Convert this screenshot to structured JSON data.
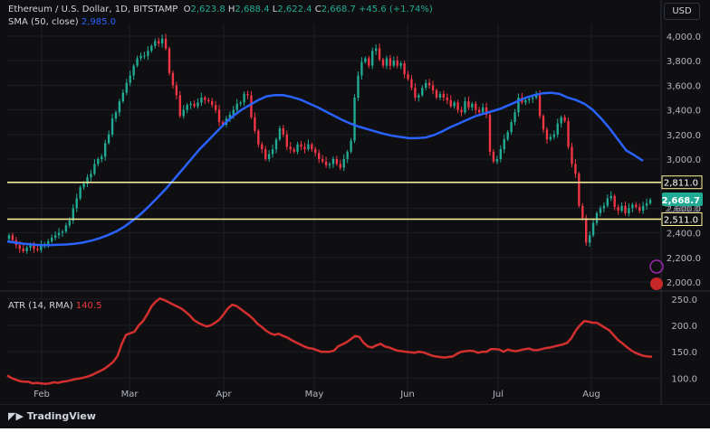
{
  "legend": {
    "symbol": "Ethereum / U.S. Dollar, 1D, BITSTAMP",
    "o_label": "O",
    "o": "2,623.8",
    "h_label": "H",
    "h": "2,688.4",
    "l_label": "L",
    "l": "2,622.4",
    "c_label": "C",
    "c": "2,668.7",
    "change": "+45.6 (+1.74%)",
    "sma_label": "SMA (50, close)",
    "sma": "2,985.0",
    "atr_label": "ATR (14, RMA)",
    "atr": "140.5"
  },
  "currency": "USD",
  "brand": "TradingView",
  "colors": {
    "up": "#22ab94",
    "down": "#f23645",
    "sma": "#2962ff",
    "atr": "#d32f2f",
    "level": "#fff59d"
  },
  "chart_data": {
    "type": "candlestick",
    "price_axis": {
      "min": 2000,
      "max": 4000,
      "ticks": [
        "2,000.0",
        "2,200.0",
        "2,400.0",
        "2,600.0",
        "2,800.0",
        "3,000.0",
        "3,200.0",
        "3,400.0",
        "3,600.0",
        "3,800.0",
        "4,000.0"
      ]
    },
    "levels": [
      {
        "value": 2811,
        "label": "2,811.0"
      },
      {
        "value": 2511,
        "label": "2,511.0"
      }
    ],
    "last_price": {
      "value": 2668.7,
      "label": "2,668.7"
    },
    "ghost_labels": [
      {
        "value": 2600,
        "label": "2,600.0"
      }
    ],
    "months": [
      "Feb",
      "Mar",
      "Apr",
      "May",
      "Jun",
      "Jul",
      "Aug"
    ],
    "price_close": [
      2380,
      2340,
      2300,
      2270,
      2250,
      2280,
      2300,
      2270,
      2260,
      2300,
      2310,
      2330,
      2360,
      2380,
      2400,
      2410,
      2460,
      2500,
      2600,
      2680,
      2770,
      2800,
      2850,
      2880,
      2960,
      3000,
      3020,
      3130,
      3200,
      3330,
      3380,
      3470,
      3540,
      3620,
      3680,
      3760,
      3820,
      3840,
      3840,
      3880,
      3920,
      3960,
      3940,
      3980,
      3900,
      3700,
      3600,
      3520,
      3350,
      3400,
      3440,
      3450,
      3430,
      3460,
      3500,
      3480,
      3470,
      3440,
      3400,
      3300,
      3280,
      3330,
      3360,
      3400,
      3450,
      3460,
      3530,
      3520,
      3340,
      3230,
      3120,
      3080,
      3000,
      3040,
      3080,
      3160,
      3250,
      3200,
      3100,
      3080,
      3060,
      3120,
      3100,
      3080,
      3120,
      3080,
      3050,
      3000,
      2980,
      2950,
      2960,
      3000,
      2960,
      2930,
      3000,
      3060,
      3150,
      3500,
      3680,
      3790,
      3820,
      3760,
      3880,
      3900,
      3810,
      3760,
      3820,
      3760,
      3800,
      3760,
      3780,
      3690,
      3650,
      3580,
      3500,
      3520,
      3580,
      3620,
      3600,
      3560,
      3500,
      3530,
      3500,
      3480,
      3430,
      3460,
      3400,
      3380,
      3470,
      3420,
      3450,
      3400,
      3380,
      3420,
      3360,
      3060,
      2980,
      3000,
      3080,
      3160,
      3220,
      3300,
      3380,
      3500,
      3460,
      3480,
      3490,
      3500,
      3520,
      3350,
      3240,
      3160,
      3180,
      3200,
      3290,
      3340,
      3310,
      3100,
      2960,
      2880,
      2620,
      2520,
      2320,
      2380,
      2480,
      2560,
      2600,
      2620,
      2680,
      2700,
      2610,
      2580,
      2620,
      2560,
      2600,
      2630,
      2610,
      2580,
      2620,
      2640,
      2668.7
    ],
    "sma_50": [
      2330,
      2320,
      2310,
      2305,
      2300,
      2300,
      2302,
      2305,
      2310,
      2320,
      2335,
      2355,
      2380,
      2410,
      2450,
      2500,
      2555,
      2620,
      2690,
      2760,
      2840,
      2920,
      3000,
      3080,
      3150,
      3220,
      3290,
      3350,
      3400,
      3440,
      3480,
      3510,
      3520,
      3520,
      3505,
      3485,
      3455,
      3425,
      3390,
      3355,
      3320,
      3290,
      3265,
      3245,
      3225,
      3205,
      3190,
      3180,
      3170,
      3170,
      3175,
      3195,
      3225,
      3260,
      3290,
      3320,
      3350,
      3370,
      3390,
      3410,
      3440,
      3470,
      3500,
      3520,
      3535,
      3540,
      3530,
      3500,
      3480,
      3450,
      3400,
      3330,
      3250,
      3160,
      3070,
      3030,
      2985
    ],
    "atr_axis": {
      "ticks": [
        "100.0",
        "150.0",
        "200.0",
        "250.0"
      ]
    },
    "atr": [
      105,
      100,
      97,
      94,
      93,
      93,
      90,
      91,
      90,
      89,
      90,
      92,
      91,
      93,
      94,
      96,
      98,
      99,
      101,
      103,
      106,
      110,
      114,
      118,
      124,
      131,
      142,
      165,
      182,
      185,
      188,
      200,
      208,
      221,
      236,
      245,
      251,
      248,
      244,
      240,
      236,
      232,
      226,
      219,
      210,
      205,
      201,
      198,
      200,
      205,
      211,
      221,
      232,
      239,
      237,
      231,
      225,
      219,
      212,
      203,
      197,
      190,
      185,
      182,
      184,
      180,
      177,
      172,
      168,
      164,
      160,
      157,
      156,
      153,
      150,
      150,
      150,
      152,
      160,
      164,
      168,
      174,
      180,
      178,
      167,
      160,
      158,
      162,
      165,
      160,
      158,
      155,
      152,
      151,
      150,
      149,
      148,
      150,
      149,
      146,
      143,
      141,
      140,
      139,
      140,
      141,
      146,
      150,
      151,
      152,
      151,
      148,
      150,
      150,
      155,
      155,
      154,
      150,
      154,
      152,
      151,
      153,
      155,
      156,
      153,
      153,
      155,
      157,
      158,
      160,
      162,
      164,
      167,
      176,
      190,
      200,
      208,
      207,
      205,
      205,
      200,
      195,
      190,
      181,
      172,
      166,
      159,
      153,
      148,
      145,
      142,
      141,
      140.5
    ],
    "plot": {
      "price_min": 2000,
      "price_max": 4000,
      "atr_min": 80,
      "atr_max": 260
    }
  }
}
